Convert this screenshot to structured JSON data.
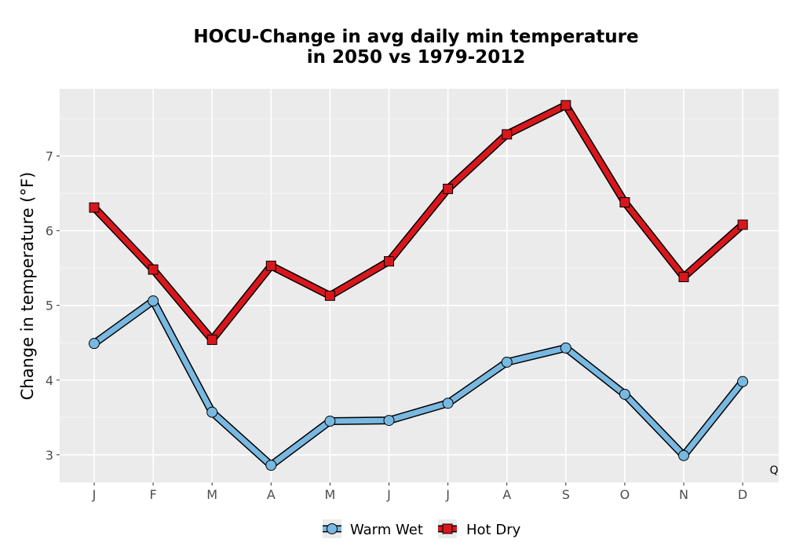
{
  "chart_data": {
    "type": "line",
    "title_lines": [
      "HOCU-Change in avg daily min temperature",
      "in 2050 vs 1979-2012"
    ],
    "xlabel": "",
    "ylabel": "Change in temperature (°F)",
    "categories": [
      "J",
      "F",
      "M",
      "A",
      "M",
      "J",
      "J",
      "A",
      "S",
      "O",
      "N",
      "D"
    ],
    "yticks": [
      3,
      4,
      5,
      6,
      7
    ],
    "ylim": [
      2.63,
      7.9
    ],
    "grid": true,
    "legend_position": "bottom",
    "corner_note": "Q",
    "series": [
      {
        "name": "Warm Wet",
        "color": "#79b8e0",
        "marker": "circle",
        "values": [
          4.49,
          5.06,
          3.57,
          2.86,
          3.45,
          3.46,
          3.69,
          4.24,
          4.43,
          3.81,
          2.99,
          3.98
        ]
      },
      {
        "name": "Hot Dry",
        "color": "#d8171d",
        "marker": "square",
        "values": [
          6.31,
          5.48,
          4.54,
          5.53,
          5.13,
          5.59,
          6.56,
          7.29,
          7.68,
          6.38,
          5.38,
          6.08
        ]
      }
    ]
  }
}
